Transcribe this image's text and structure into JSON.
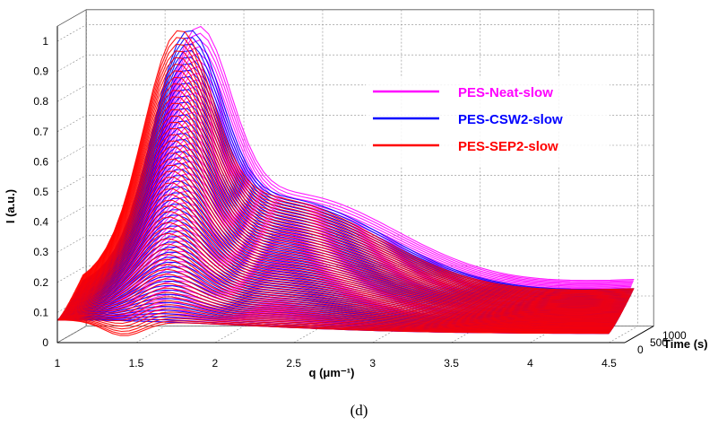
{
  "chart_data": {
    "type": "line",
    "projection": "3d-waterfall",
    "xlabel": "q (μm⁻¹)",
    "ylabel": "I (a.u.)",
    "zlabel": "Time (s)",
    "x_ticks": [
      "1",
      "1.5",
      "2",
      "2.5",
      "3",
      "3.5",
      "4",
      "4.5"
    ],
    "y_ticks": [
      "0",
      "0.1",
      "0.2",
      "0.3",
      "0.4",
      "0.5",
      "0.6",
      "0.7",
      "0.8",
      "0.9",
      "1"
    ],
    "z_ticks": [
      "0",
      "500",
      "1000"
    ],
    "xlim": [
      1,
      4.6
    ],
    "ylim": [
      0,
      1.05
    ],
    "zlim": [
      0,
      1150
    ],
    "grid": true,
    "legend_position": "top-right",
    "curves_per_series": 55,
    "series": [
      {
        "name": "PES-Neat-slow",
        "color": "#ff00ff",
        "peak_q_final": 1.72,
        "peak_I_final": 1.0,
        "tail_I_at_4_5": 0.18
      },
      {
        "name": "PES-CSW2-slow",
        "color": "#0000ff",
        "peak_q_final": 1.7,
        "peak_I_final": 1.0,
        "tail_I_at_4_5": 0.15
      },
      {
        "name": "PES-SEP2-slow",
        "color": "#ff0000",
        "peak_q_final": 1.68,
        "peak_I_final": 1.0,
        "tail_I_at_4_5": 0.16
      }
    ],
    "caption": "(d)"
  }
}
